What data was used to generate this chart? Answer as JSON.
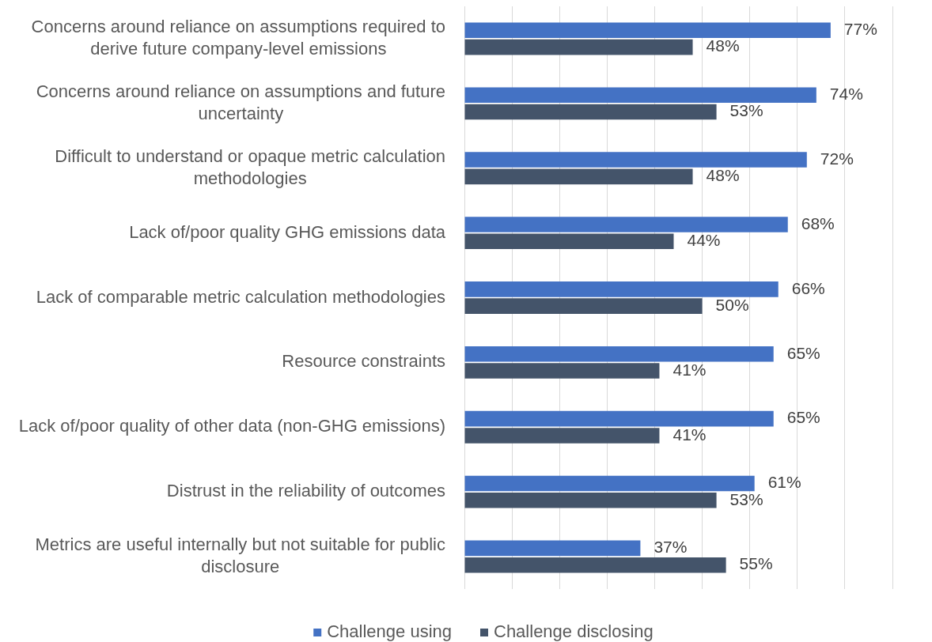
{
  "chart_data": {
    "type": "bar",
    "orientation": "horizontal",
    "categories": [
      "Concerns around reliance on assumptions required to derive future company-level emissions",
      "Concerns around reliance on assumptions and future uncertainty",
      "Difficult to understand or opaque metric calculation methodologies",
      "Lack of/poor quality GHG emissions data",
      "Lack of comparable metric calculation methodologies",
      "Resource constraints",
      "Lack of/poor quality of other data (non-GHG emissions)",
      "Distrust in the reliability of outcomes",
      "Metrics are useful internally but not suitable for public disclosure"
    ],
    "series": [
      {
        "name": "Challenge using",
        "color": "#4472c4",
        "values": [
          77,
          74,
          72,
          68,
          66,
          65,
          65,
          61,
          37
        ],
        "value_labels": [
          "77%",
          "74%",
          "72%",
          "68%",
          "66%",
          "65%",
          "65%",
          "61%",
          "37%"
        ]
      },
      {
        "name": "Challenge disclosing",
        "color": "#44546a",
        "values": [
          48,
          53,
          48,
          44,
          50,
          41,
          41,
          53,
          55
        ],
        "value_labels": [
          "48%",
          "53%",
          "48%",
          "44%",
          "50%",
          "41%",
          "41%",
          "53%",
          "55%"
        ]
      }
    ],
    "xlim": [
      0,
      90
    ],
    "xticks": [
      {
        "value": 0,
        "label": null
      },
      {
        "value": 10,
        "label": null
      },
      {
        "value": 20,
        "label": null
      },
      {
        "value": 30,
        "label": null
      },
      {
        "value": 40,
        "label": null
      },
      {
        "value": 50,
        "label": null
      },
      {
        "value": 60,
        "label": null
      },
      {
        "value": 70,
        "label": null
      },
      {
        "value": 80,
        "label": null
      },
      {
        "value": 90,
        "label": null
      }
    ],
    "grid": "x",
    "legend": "bottom",
    "tick_labels": "y"
  }
}
